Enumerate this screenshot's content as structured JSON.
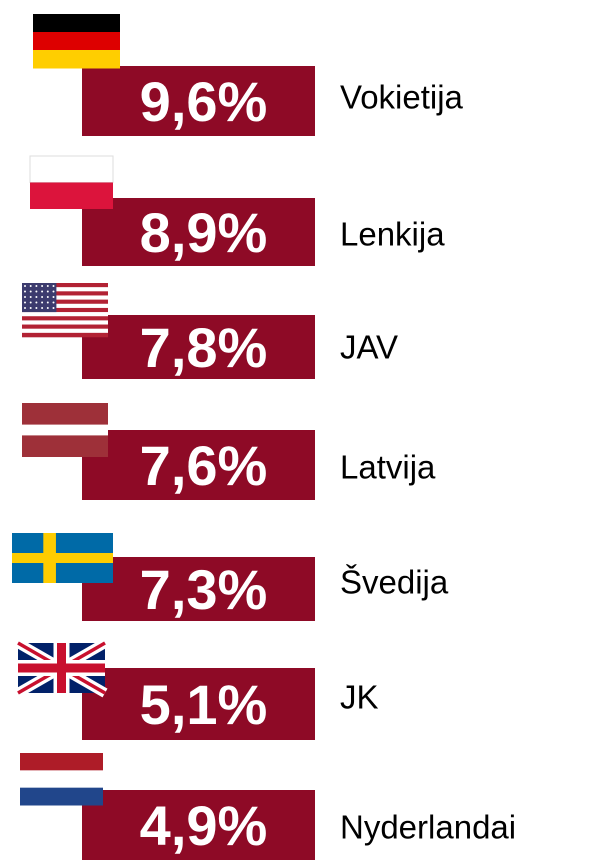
{
  "items": [
    {
      "value": "9,6%",
      "label": "Vokietija"
    },
    {
      "value": "8,9%",
      "label": "Lenkija"
    },
    {
      "value": "7,8%",
      "label": "JAV"
    },
    {
      "value": "7,6%",
      "label": "Latvija"
    },
    {
      "value": "7,3%",
      "label": "Švedija"
    },
    {
      "value": "5,1%",
      "label": "JK"
    },
    {
      "value": "4,9%",
      "label": "Nyderlandai"
    }
  ]
}
